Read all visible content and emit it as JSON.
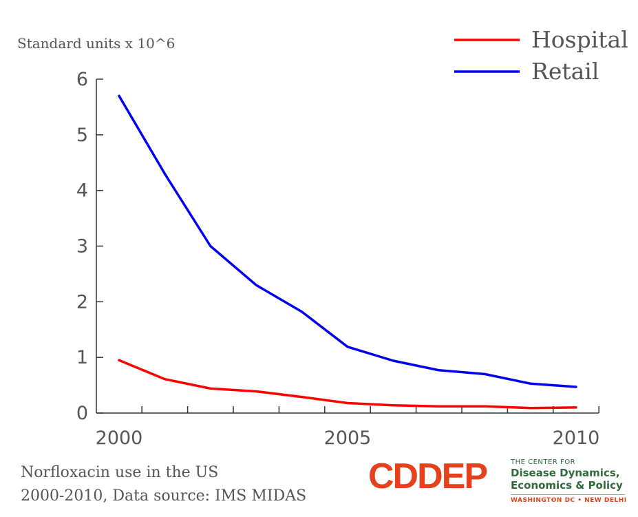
{
  "chart_data": {
    "type": "line",
    "ylabel": "Standard units x 10^6",
    "x": [
      2000,
      2001,
      2002,
      2003,
      2004,
      2005,
      2006,
      2007,
      2008,
      2009,
      2010
    ],
    "xlim": [
      1999.5,
      2010.5
    ],
    "xticks": [
      2000,
      2005,
      2010
    ],
    "ylim": [
      0,
      6
    ],
    "yticks": [
      0,
      1,
      2,
      3,
      4,
      5,
      6
    ],
    "legend_position": "top-right",
    "grid": false,
    "series": [
      {
        "name": "Hospital",
        "color": "#ff0000",
        "values": [
          0.95,
          0.61,
          0.44,
          0.39,
          0.29,
          0.18,
          0.14,
          0.12,
          0.12,
          0.09,
          0.1
        ]
      },
      {
        "name": "Retail",
        "color": "#0000ee",
        "values": [
          5.7,
          4.3,
          3.0,
          2.3,
          1.82,
          1.19,
          0.94,
          0.77,
          0.7,
          0.53,
          0.47
        ]
      }
    ]
  },
  "caption": {
    "line1": "Norfloxacin use in the US",
    "line2": "2000-2010, Data source: IMS MIDAS"
  },
  "logo": {
    "mark": "CDDEP",
    "line1": "THE CENTER FOR",
    "line2": "Disease Dynamics,",
    "line3": "Economics & Policy",
    "line4": "WASHINGTON DC • NEW DELHI"
  }
}
